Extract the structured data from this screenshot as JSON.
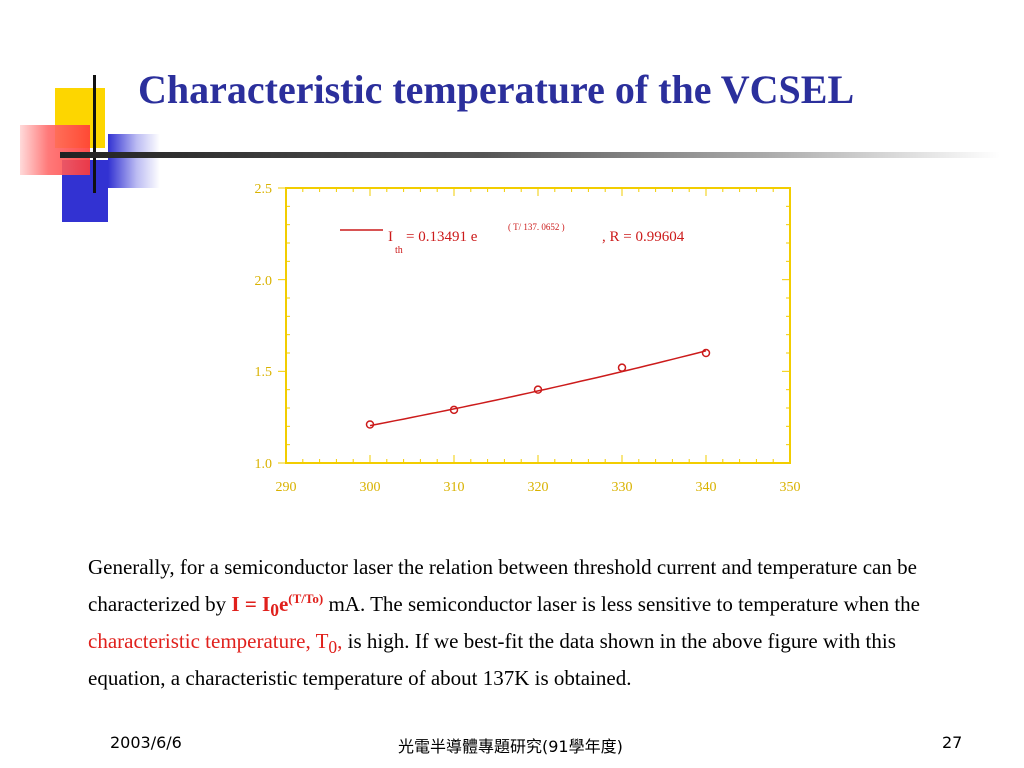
{
  "slide": {
    "title": "Characteristic temperature of the VCSEL"
  },
  "chart_data": {
    "type": "scatter",
    "x_ticks": [
      "290",
      "300",
      "310",
      "320",
      "330",
      "340",
      "350"
    ],
    "y_ticks": [
      "1.0",
      "1.5",
      "2.0",
      "2.5"
    ],
    "xlim": [
      290,
      350
    ],
    "ylim": [
      1.0,
      2.5
    ],
    "series": [
      {
        "x": [
          300,
          310,
          320,
          330,
          340
        ],
        "y": [
          1.21,
          1.29,
          1.4,
          1.52,
          1.6
        ],
        "fit": {
          "a": 0.13491,
          "T0": 137.0652
        }
      }
    ],
    "legend": {
      "lhs_main": "I",
      "lhs_sub": "th",
      "equation": "= 0.13491  e",
      "exponent": "( T/ 137. 0652 )",
      "r_value": ", R = 0.99604"
    },
    "colors": {
      "frame": "#f2cd00",
      "data": "#cc1b1b"
    }
  },
  "body": {
    "p1": "Generally, for a semiconductor laser the relation between threshold current and temperature can be characterized by ",
    "eq_lhs": "I = I",
    "eq_sub": "0",
    "eq_e": "e",
    "eq_sup": "(T/To)",
    "p2": "  mA. The semiconductor laser is less sensitive to temperature when the ",
    "ct_label": "characteristic temperature, T",
    "ct_sub": "0",
    "ct_comma": ",",
    "p3": " is high. If we best-fit the data shown in the above figure with this equation, a characteristic temperature of about 137K is obtained."
  },
  "footer": {
    "date": "2003/6/6",
    "course": "光電半導體專題研究(91學年度)",
    "page": "27"
  },
  "decor_colors": [
    "#fdd600",
    "#3232d2",
    "#ff5a5a",
    "#2b2f9c"
  ]
}
